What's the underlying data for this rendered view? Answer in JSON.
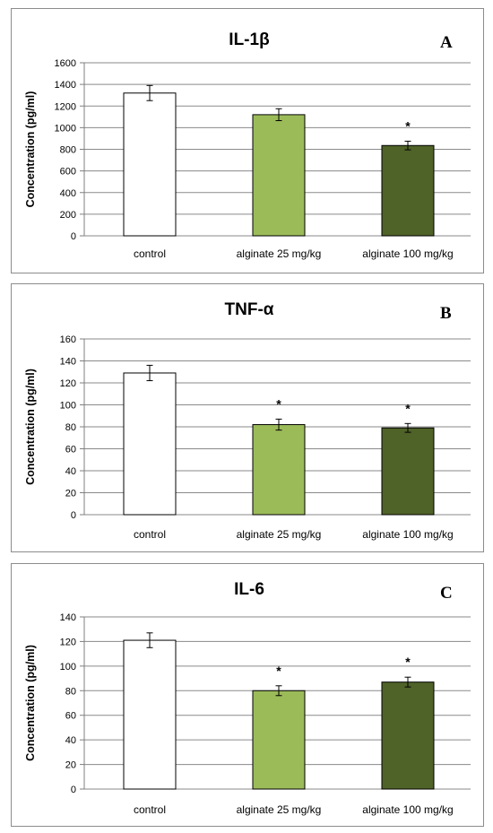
{
  "chart_data": [
    {
      "type": "bar",
      "title": "IL-1β",
      "panel_label": "A",
      "ylabel": "Concentration (pg/ml)",
      "categories": [
        "control",
        "alginate 25 mg/kg",
        "alginate 100 mg/kg"
      ],
      "values": [
        1320,
        1120,
        835
      ],
      "errors": [
        70,
        55,
        40
      ],
      "significance": [
        "",
        "",
        "*"
      ],
      "colors": [
        "#ffffff",
        "#9bbb59",
        "#4f6228"
      ],
      "ylim": [
        0,
        1600
      ],
      "yticks": [
        "0",
        "200",
        "400",
        "600",
        "800",
        "1000",
        "1200",
        "1400",
        "1600"
      ],
      "grid": true
    },
    {
      "type": "bar",
      "title": "TNF-α",
      "panel_label": "B",
      "ylabel": "Concentration (pg/ml)",
      "categories": [
        "control",
        "alginate 25 mg/kg",
        "alginate 100 mg/kg"
      ],
      "values": [
        129,
        82,
        79
      ],
      "errors": [
        7,
        5,
        4
      ],
      "significance": [
        "",
        "*",
        "*"
      ],
      "colors": [
        "#ffffff",
        "#9bbb59",
        "#4f6228"
      ],
      "ylim": [
        0,
        160
      ],
      "yticks": [
        "0",
        "20",
        "40",
        "60",
        "80",
        "100",
        "120",
        "140",
        "160"
      ],
      "grid": true
    },
    {
      "type": "bar",
      "title": "IL-6",
      "panel_label": "C",
      "ylabel": "Concentration (pg/ml)",
      "categories": [
        "control",
        "alginate 25 mg/kg",
        "alginate 100 mg/kg"
      ],
      "values": [
        121,
        80,
        87
      ],
      "errors": [
        6,
        4,
        4
      ],
      "significance": [
        "",
        "*",
        "*"
      ],
      "colors": [
        "#ffffff",
        "#9bbb59",
        "#4f6228"
      ],
      "ylim": [
        0,
        140
      ],
      "yticks": [
        "0",
        "20",
        "40",
        "60",
        "80",
        "100",
        "120",
        "140"
      ],
      "grid": true
    }
  ]
}
